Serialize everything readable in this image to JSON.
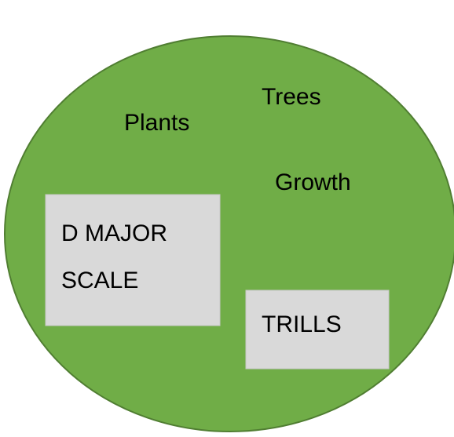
{
  "words": [
    {
      "label": "Trees"
    },
    {
      "label": "Plants"
    },
    {
      "label": "Growth"
    }
  ],
  "boxes": [
    {
      "lines": [
        "D MAJOR",
        "SCALE"
      ]
    },
    {
      "lines": [
        "TRILLS"
      ]
    }
  ]
}
